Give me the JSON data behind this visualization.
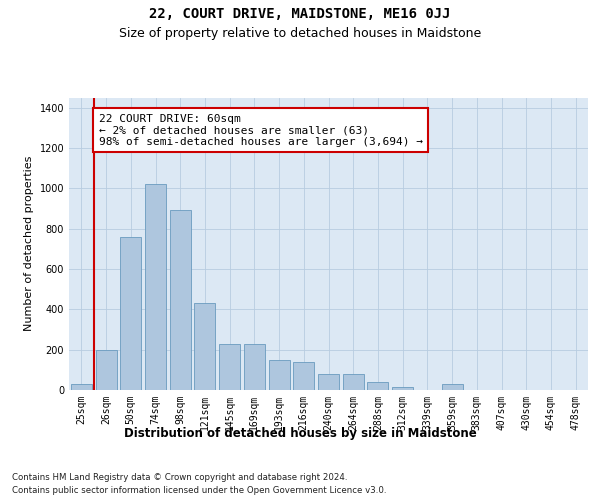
{
  "title": "22, COURT DRIVE, MAIDSTONE, ME16 0JJ",
  "subtitle": "Size of property relative to detached houses in Maidstone",
  "xlabel": "Distribution of detached houses by size in Maidstone",
  "ylabel": "Number of detached properties",
  "categories": [
    "25sqm",
    "26sqm",
    "50sqm",
    "74sqm",
    "98sqm",
    "121sqm",
    "145sqm",
    "169sqm",
    "193sqm",
    "216sqm",
    "240sqm",
    "264sqm",
    "288sqm",
    "312sqm",
    "339sqm",
    "359sqm",
    "383sqm",
    "407sqm",
    "430sqm",
    "454sqm",
    "478sqm"
  ],
  "values": [
    30,
    200,
    760,
    1020,
    890,
    430,
    230,
    230,
    150,
    140,
    80,
    80,
    40,
    15,
    0,
    30,
    0,
    0,
    0,
    0,
    0
  ],
  "bar_color": "#aec6de",
  "bar_edge_color": "#6a9bbf",
  "vline_x_index": 0.5,
  "vline_color": "#cc0000",
  "annotation_text": "22 COURT DRIVE: 60sqm\n← 2% of detached houses are smaller (63)\n98% of semi-detached houses are larger (3,694) →",
  "annotation_box_color": "#ffffff",
  "annotation_box_edge_color": "#cc0000",
  "ylim": [
    0,
    1450
  ],
  "yticks": [
    0,
    200,
    400,
    600,
    800,
    1000,
    1200,
    1400
  ],
  "background_color": "#dce8f4",
  "footer_line1": "Contains HM Land Registry data © Crown copyright and database right 2024.",
  "footer_line2": "Contains public sector information licensed under the Open Government Licence v3.0.",
  "title_fontsize": 10,
  "subtitle_fontsize": 9,
  "annotation_fontsize": 8,
  "xlabel_fontsize": 8.5,
  "ylabel_fontsize": 8,
  "tick_fontsize": 7
}
